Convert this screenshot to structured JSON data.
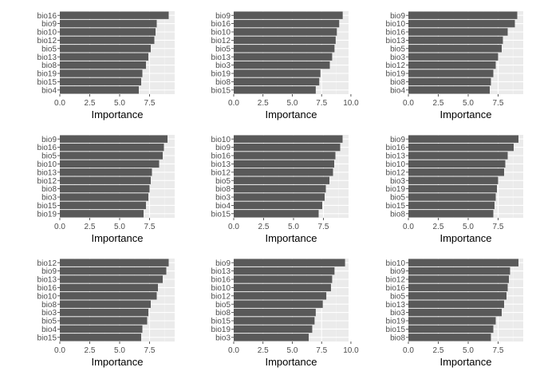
{
  "colors": {
    "panel_background": "#ebebeb",
    "grid_major": "#ffffff",
    "grid_minor": "#f5f5f5",
    "bar_fill": "#595959",
    "tick_label": "#4d4d4d",
    "axis_title": "#000000"
  },
  "chart_data": [
    {
      "type": "bar",
      "orientation": "horizontal",
      "xlabel": "Importance",
      "xlim": [
        0,
        9.6
      ],
      "xticks": [
        0,
        2.5,
        5,
        7.5
      ],
      "xtick_labels": [
        "0.0",
        "2.5",
        "5.0",
        "7.5"
      ],
      "categories": [
        "bio16",
        "bio9",
        "bio10",
        "bio12",
        "bio5",
        "bio13",
        "bio8",
        "bio19",
        "bio15",
        "bio4"
      ],
      "values": [
        9.1,
        8.1,
        8.0,
        7.9,
        7.6,
        7.4,
        7.2,
        6.9,
        6.8,
        6.6
      ]
    },
    {
      "type": "bar",
      "orientation": "horizontal",
      "xlabel": "Importance",
      "xlim": [
        0,
        9.8
      ],
      "xticks": [
        0,
        2.5,
        5,
        7.5,
        10
      ],
      "xtick_labels": [
        "0.0",
        "2.5",
        "5.0",
        "7.5",
        "10.0"
      ],
      "categories": [
        "bio9",
        "bio16",
        "bio10",
        "bio12",
        "bio5",
        "bio13",
        "bio3",
        "bio19",
        "bio8",
        "bio15"
      ],
      "values": [
        9.3,
        9.0,
        8.8,
        8.7,
        8.6,
        8.4,
        8.2,
        7.4,
        7.3,
        7.0
      ]
    },
    {
      "type": "bar",
      "orientation": "horizontal",
      "xlabel": "Importance",
      "xlim": [
        0,
        9.6
      ],
      "xticks": [
        0,
        2.5,
        5,
        7.5
      ],
      "xtick_labels": [
        "0.0",
        "2.5",
        "5.0",
        "7.5"
      ],
      "categories": [
        "bio9",
        "bio10",
        "bio16",
        "bio13",
        "bio5",
        "bio3",
        "bio12",
        "bio19",
        "bio8",
        "bio4"
      ],
      "values": [
        9.1,
        8.9,
        8.3,
        7.9,
        7.8,
        7.5,
        7.3,
        7.1,
        6.9,
        6.8
      ]
    },
    {
      "type": "bar",
      "orientation": "horizontal",
      "xlabel": "Importance",
      "xlim": [
        0,
        9.6
      ],
      "xticks": [
        0,
        2.5,
        5,
        7.5
      ],
      "xtick_labels": [
        "0.0",
        "2.5",
        "5.0",
        "7.5"
      ],
      "categories": [
        "bio9",
        "bio16",
        "bio5",
        "bio10",
        "bio13",
        "bio12",
        "bio8",
        "bio3",
        "bio15",
        "bio19"
      ],
      "values": [
        9.0,
        8.7,
        8.6,
        8.3,
        7.7,
        7.6,
        7.5,
        7.4,
        7.2,
        7.0
      ]
    },
    {
      "type": "bar",
      "orientation": "horizontal",
      "xlabel": "Importance",
      "xlim": [
        0,
        9.6
      ],
      "xticks": [
        0,
        2.5,
        5,
        7.5
      ],
      "xtick_labels": [
        "0.0",
        "2.5",
        "5.0",
        "7.5"
      ],
      "categories": [
        "bio10",
        "bio9",
        "bio16",
        "bio13",
        "bio12",
        "bio5",
        "bio8",
        "bio3",
        "bio4",
        "bio15"
      ],
      "values": [
        9.1,
        8.9,
        8.5,
        8.4,
        8.3,
        8.0,
        7.7,
        7.6,
        7.4,
        7.1
      ]
    },
    {
      "type": "bar",
      "orientation": "horizontal",
      "xlabel": "Importance",
      "xlim": [
        0,
        9.6
      ],
      "xticks": [
        0,
        2.5,
        5,
        7.5
      ],
      "xtick_labels": [
        "0.0",
        "2.5",
        "5.0",
        "7.5"
      ],
      "categories": [
        "bio9",
        "bio16",
        "bio13",
        "bio10",
        "bio12",
        "bio3",
        "bio19",
        "bio5",
        "bio15",
        "bio8"
      ],
      "values": [
        9.2,
        8.8,
        8.3,
        8.1,
        8.0,
        7.5,
        7.4,
        7.3,
        7.2,
        7.1
      ]
    },
    {
      "type": "bar",
      "orientation": "horizontal",
      "xlabel": "Importance",
      "xlim": [
        0,
        9.6
      ],
      "xticks": [
        0,
        2.5,
        5,
        7.5
      ],
      "xtick_labels": [
        "0.0",
        "2.5",
        "5.0",
        "7.5"
      ],
      "categories": [
        "bio12",
        "bio9",
        "bio13",
        "bio16",
        "bio10",
        "bio8",
        "bio3",
        "bio5",
        "bio4",
        "bio15"
      ],
      "values": [
        9.1,
        8.9,
        8.6,
        8.2,
        8.1,
        7.6,
        7.4,
        7.3,
        6.9,
        6.8
      ]
    },
    {
      "type": "bar",
      "orientation": "horizontal",
      "xlabel": "Importance",
      "xlim": [
        0,
        9.8
      ],
      "xticks": [
        0,
        2.5,
        5,
        7.5,
        10
      ],
      "xtick_labels": [
        "0.0",
        "2.5",
        "5.0",
        "7.5",
        "10.0"
      ],
      "categories": [
        "bio9",
        "bio13",
        "bio16",
        "bio10",
        "bio12",
        "bio5",
        "bio8",
        "bio15",
        "bio19",
        "bio3"
      ],
      "values": [
        9.5,
        8.6,
        8.4,
        8.3,
        7.9,
        7.6,
        7.0,
        6.9,
        6.7,
        6.4
      ]
    },
    {
      "type": "bar",
      "orientation": "horizontal",
      "xlabel": "Importance",
      "xlim": [
        0,
        9.6
      ],
      "xticks": [
        0,
        2.5,
        5,
        7.5
      ],
      "xtick_labels": [
        "0.0",
        "2.5",
        "5.0",
        "7.5"
      ],
      "categories": [
        "bio10",
        "bio9",
        "bio12",
        "bio16",
        "bio5",
        "bio13",
        "bio3",
        "bio19",
        "bio15",
        "bio8"
      ],
      "values": [
        9.2,
        8.5,
        8.4,
        8.3,
        8.2,
        8.0,
        7.8,
        7.3,
        7.1,
        6.9
      ]
    }
  ]
}
